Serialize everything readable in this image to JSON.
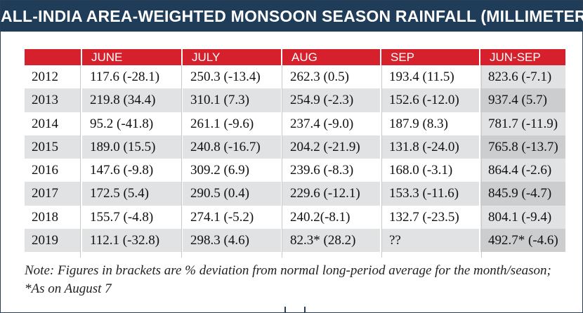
{
  "title": "ALL-INDIA AREA-WEIGHTED MONSOON SEASON RAINFALL (MILLIMETERS)",
  "columns": [
    "",
    "JUNE",
    "JULY",
    "AUG",
    "SEP",
    "JUN-SEP"
  ],
  "rows": [
    [
      "2012",
      "117.6 (-28.1)",
      "250.3 (-13.4)",
      "262.3 (0.5)",
      "193.4 (11.5)",
      "823.6 (-7.1)"
    ],
    [
      "2013",
      "219.8 (34.4)",
      "310.1 (7.3)",
      "254.9 (-2.3)",
      "152.6 (-12.0)",
      "937.4 (5.7)"
    ],
    [
      "2014",
      "95.2 (-41.8)",
      "261.1 (-9.6)",
      "237.4 (-9.0)",
      "187.9 (8.3)",
      "781.7 (-11.9)"
    ],
    [
      "2015",
      "189.0 (15.5)",
      "240.8 (-16.7)",
      "204.2 (-21.9)",
      "131.8 (-24.0)",
      "765.8 (-13.7)"
    ],
    [
      "2016",
      "147.6 (-9.8)",
      "309.2 (6.9)",
      "239.6 (-8.3)",
      "168.0 (-3.1)",
      "864.4 (-2.6)"
    ],
    [
      "2017",
      "172.5 (5.4)",
      "290.5 (0.4)",
      "229.6 (-12.1)",
      "153.3 (-11.6)",
      "845.9 (-4.7)"
    ],
    [
      "2018",
      "155.7 (-4.8)",
      "274.1 (-5.2)",
      "240.2(-8.1)",
      "132.7 (-23.5)",
      "804.1 (-9.4)"
    ],
    [
      "2019",
      "112.1 (-32.8)",
      "298.3 (4.6)",
      "82.3* (28.2)",
      "??",
      "492.7* (-4.6)"
    ]
  ],
  "note": "Note: Figures in brackets are % deviation from normal long-period average for the month/season; *As on August 7",
  "colors": {
    "title_bg": "#1f3c59",
    "header_bg": "#d6212c",
    "alt_row_bg": "#e1e2e3"
  }
}
